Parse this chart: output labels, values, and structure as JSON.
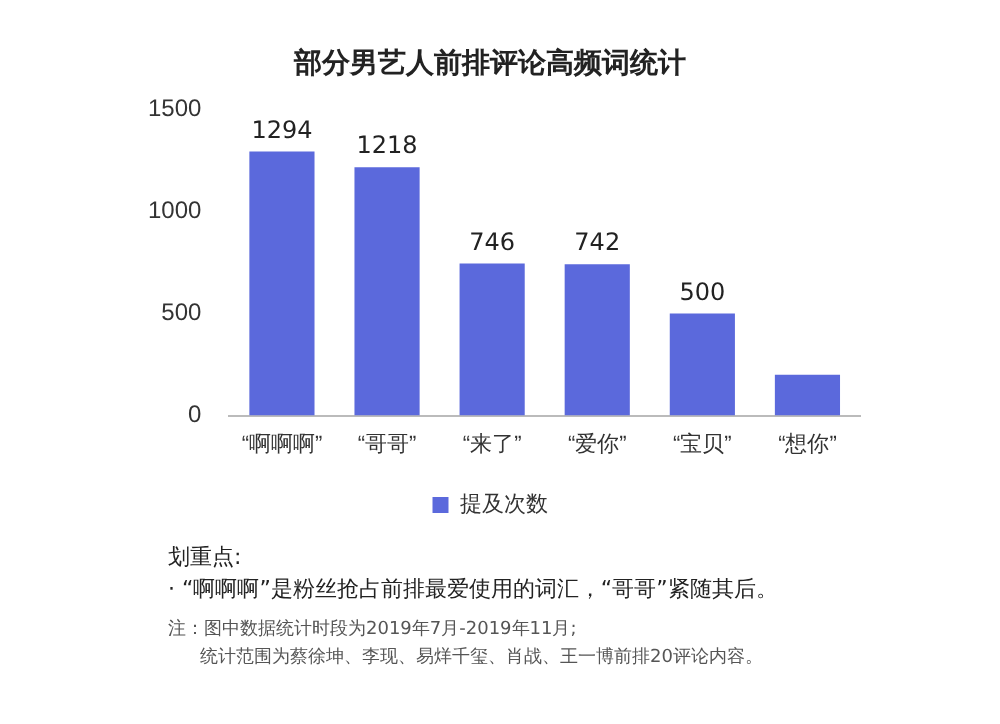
{
  "chart_data": {
    "type": "bar",
    "title": "部分男艺人前排评论高频词统计",
    "categories": [
      "“啊啊啊”",
      "“哥哥”",
      "“来了”",
      "“爱你”",
      "“宝贝”",
      "“想你”"
    ],
    "series": [
      {
        "name": "提及次数",
        "color": "#5b69dc",
        "values": [
          1294,
          1218,
          746,
          742,
          500,
          200
        ],
        "value_labels": [
          "1294",
          "1218",
          "746",
          "742",
          "500",
          null
        ]
      }
    ],
    "ylim": [
      0,
      1500
    ],
    "yticks": [
      0,
      500,
      1000,
      1500
    ],
    "grid": false,
    "legend": "bottom",
    "annotations": [
      "划重点:",
      "· “啊啊啊”是粉丝抢占前排最爱使用的词汇，“哥哥”紧随其后。",
      "注：图中数据统计时段为2019年7月-2019年11月;",
      "统计范围为蔡徐坤、李现、易烊千玺、肖战、王一博前排20评论内容。"
    ]
  }
}
